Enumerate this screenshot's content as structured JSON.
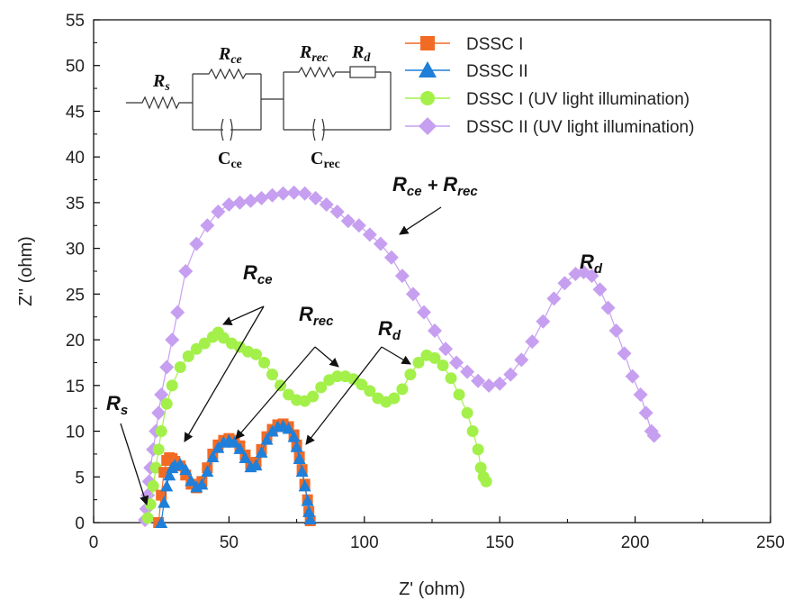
{
  "chart_data": {
    "type": "scatter",
    "xlabel": "Z' (ohm)",
    "ylabel": "Z'' (ohm)",
    "xlim": [
      0,
      250
    ],
    "ylim": [
      0,
      55
    ],
    "xticks": [
      "0",
      "50",
      "100",
      "150",
      "200",
      "250"
    ],
    "yticks": [
      "0",
      "5",
      "10",
      "15",
      "20",
      "25",
      "30",
      "35",
      "40",
      "45",
      "50",
      "55"
    ],
    "grid": false,
    "legend_position": "top-right",
    "series": [
      {
        "name": "DSSC I",
        "marker": "square",
        "color": "#f26b25",
        "points": [
          [
            24,
            0
          ],
          [
            25,
            3
          ],
          [
            26,
            5.5
          ],
          [
            27,
            6.8
          ],
          [
            28,
            7.1
          ],
          [
            29,
            7.0
          ],
          [
            30,
            6.7
          ],
          [
            32,
            6.2
          ],
          [
            34,
            5.2
          ],
          [
            36,
            4.2
          ],
          [
            38,
            3.8
          ],
          [
            40,
            4.5
          ],
          [
            42,
            6.0
          ],
          [
            44,
            7.5
          ],
          [
            46,
            8.5
          ],
          [
            48,
            9.0
          ],
          [
            50,
            9.2
          ],
          [
            52,
            9.0
          ],
          [
            54,
            8.4
          ],
          [
            56,
            7.4
          ],
          [
            58,
            6.4
          ],
          [
            60,
            6.6
          ],
          [
            62,
            8.0
          ],
          [
            64,
            9.4
          ],
          [
            66,
            10.2
          ],
          [
            68,
            10.7
          ],
          [
            70,
            10.8
          ],
          [
            72,
            10.5
          ],
          [
            74,
            9.6
          ],
          [
            75,
            8.5
          ],
          [
            76,
            7.2
          ],
          [
            77,
            5.8
          ],
          [
            78,
            4.2
          ],
          [
            79,
            2.5
          ],
          [
            79.5,
            1.2
          ],
          [
            80,
            0.2
          ]
        ]
      },
      {
        "name": "DSSC II",
        "marker": "triangle",
        "color": "#1f7fd9",
        "points": [
          [
            25,
            0
          ],
          [
            26,
            2.2
          ],
          [
            27,
            4.0
          ],
          [
            28,
            5.2
          ],
          [
            29,
            6.0
          ],
          [
            30,
            6.3
          ],
          [
            32,
            6.4
          ],
          [
            34,
            5.8
          ],
          [
            36,
            4.6
          ],
          [
            38,
            3.9
          ],
          [
            40,
            4.2
          ],
          [
            42,
            5.6
          ],
          [
            44,
            7.2
          ],
          [
            46,
            8.2
          ],
          [
            48,
            8.8
          ],
          [
            50,
            9.0
          ],
          [
            52,
            8.8
          ],
          [
            54,
            8.1
          ],
          [
            56,
            7.1
          ],
          [
            58,
            6.1
          ],
          [
            60,
            6.3
          ],
          [
            62,
            7.7
          ],
          [
            64,
            9.1
          ],
          [
            66,
            10.0
          ],
          [
            68,
            10.5
          ],
          [
            70,
            10.6
          ],
          [
            72,
            10.3
          ],
          [
            74,
            9.4
          ],
          [
            75,
            8.3
          ],
          [
            76,
            7.0
          ],
          [
            77,
            5.6
          ],
          [
            78,
            4.0
          ],
          [
            79,
            2.4
          ],
          [
            79.5,
            1.2
          ],
          [
            80,
            0.4
          ]
        ]
      },
      {
        "name": "DSSC I (UV light illumination)",
        "marker": "circle",
        "color": "#a3f04a",
        "points": [
          [
            20,
            0.5
          ],
          [
            21,
            2
          ],
          [
            22,
            4
          ],
          [
            23,
            6
          ],
          [
            24,
            8
          ],
          [
            25,
            10
          ],
          [
            27,
            13
          ],
          [
            29,
            15
          ],
          [
            32,
            17
          ],
          [
            35,
            18.2
          ],
          [
            38,
            19
          ],
          [
            41,
            19.6
          ],
          [
            44,
            20.3
          ],
          [
            46,
            20.8
          ],
          [
            48,
            20.2
          ],
          [
            51,
            19.6
          ],
          [
            54,
            19.2
          ],
          [
            57,
            18.7
          ],
          [
            60,
            18.4
          ],
          [
            63,
            17.5
          ],
          [
            66,
            16.2
          ],
          [
            69,
            15.0
          ],
          [
            72,
            14.0
          ],
          [
            75,
            13.4
          ],
          [
            78,
            13.3
          ],
          [
            81,
            13.8
          ],
          [
            84,
            14.8
          ],
          [
            87,
            15.6
          ],
          [
            90,
            16.0
          ],
          [
            93,
            16.0
          ],
          [
            96,
            15.7
          ],
          [
            99,
            15.1
          ],
          [
            102,
            14.4
          ],
          [
            105,
            13.6
          ],
          [
            108,
            13.2
          ],
          [
            111,
            13.6
          ],
          [
            114,
            14.6
          ],
          [
            117,
            16.2
          ],
          [
            120,
            17.5
          ],
          [
            123,
            18.3
          ],
          [
            126,
            18.0
          ],
          [
            129,
            17.2
          ],
          [
            132,
            15.8
          ],
          [
            135,
            14.0
          ],
          [
            138,
            12.0
          ],
          [
            140,
            10.0
          ],
          [
            142,
            8.0
          ],
          [
            143,
            6.0
          ],
          [
            144,
            5.0
          ],
          [
            145,
            4.5
          ]
        ]
      },
      {
        "name": "DSSC II (UV light illumination)",
        "marker": "diamond",
        "color": "#c79ff0",
        "points": [
          [
            19,
            0.3
          ],
          [
            19.5,
            1.5
          ],
          [
            20,
            3
          ],
          [
            20.5,
            4.5
          ],
          [
            21,
            6
          ],
          [
            22,
            8
          ],
          [
            23,
            10
          ],
          [
            24,
            12
          ],
          [
            25,
            14
          ],
          [
            27,
            17
          ],
          [
            29,
            20
          ],
          [
            31,
            23
          ],
          [
            34,
            27.5
          ],
          [
            38,
            30.5
          ],
          [
            42,
            32.5
          ],
          [
            46,
            34
          ],
          [
            50,
            34.8
          ],
          [
            54,
            35
          ],
          [
            58,
            35.2
          ],
          [
            62,
            35.5
          ],
          [
            66,
            35.8
          ],
          [
            70,
            36.0
          ],
          [
            74,
            36.1
          ],
          [
            78,
            36.0
          ],
          [
            82,
            35.5
          ],
          [
            86,
            34.8
          ],
          [
            90,
            34.0
          ],
          [
            94,
            33.0
          ],
          [
            98,
            32.5
          ],
          [
            102,
            31.5
          ],
          [
            106,
            30.5
          ],
          [
            110,
            29.0
          ],
          [
            114,
            27.0
          ],
          [
            118,
            25.0
          ],
          [
            122,
            23.0
          ],
          [
            126,
            21.0
          ],
          [
            130,
            19.0
          ],
          [
            134,
            17.5
          ],
          [
            138,
            16.5
          ],
          [
            142,
            15.5
          ],
          [
            146,
            15.0
          ],
          [
            150,
            15.2
          ],
          [
            154,
            16.2
          ],
          [
            158,
            17.8
          ],
          [
            162,
            19.8
          ],
          [
            166,
            22.0
          ],
          [
            170,
            24.5
          ],
          [
            174,
            26.2
          ],
          [
            178,
            27.2
          ],
          [
            181,
            27.4
          ],
          [
            184,
            27.0
          ],
          [
            187,
            25.5
          ],
          [
            190,
            23.5
          ],
          [
            193,
            21.0
          ],
          [
            196,
            18.5
          ],
          [
            199,
            16.0
          ],
          [
            202,
            14.0
          ],
          [
            204,
            12.0
          ],
          [
            206,
            10.0
          ],
          [
            207,
            9.5
          ]
        ]
      }
    ],
    "annotations": [
      {
        "main": "R",
        "sub": "s"
      },
      {
        "main": "R",
        "sub": "ce"
      },
      {
        "main": "R",
        "sub": "rec"
      },
      {
        "main": "R",
        "sub": "d"
      },
      {
        "main": "R",
        "sub": "ce",
        "plus": "+",
        "main2": "R",
        "sub2": "rec"
      },
      {
        "main": "R",
        "sub": "d"
      }
    ],
    "circuit": {
      "Rs": {
        "main": "R",
        "sub": "s"
      },
      "Rce": {
        "main": "R",
        "sub": "ce"
      },
      "Rrec": {
        "main": "R",
        "sub": "rec"
      },
      "Rd": {
        "main": "R",
        "sub": "d"
      },
      "Cce": {
        "main": "C",
        "sub": "ce"
      },
      "Crec": {
        "main": "C",
        "sub": "rec"
      }
    }
  }
}
